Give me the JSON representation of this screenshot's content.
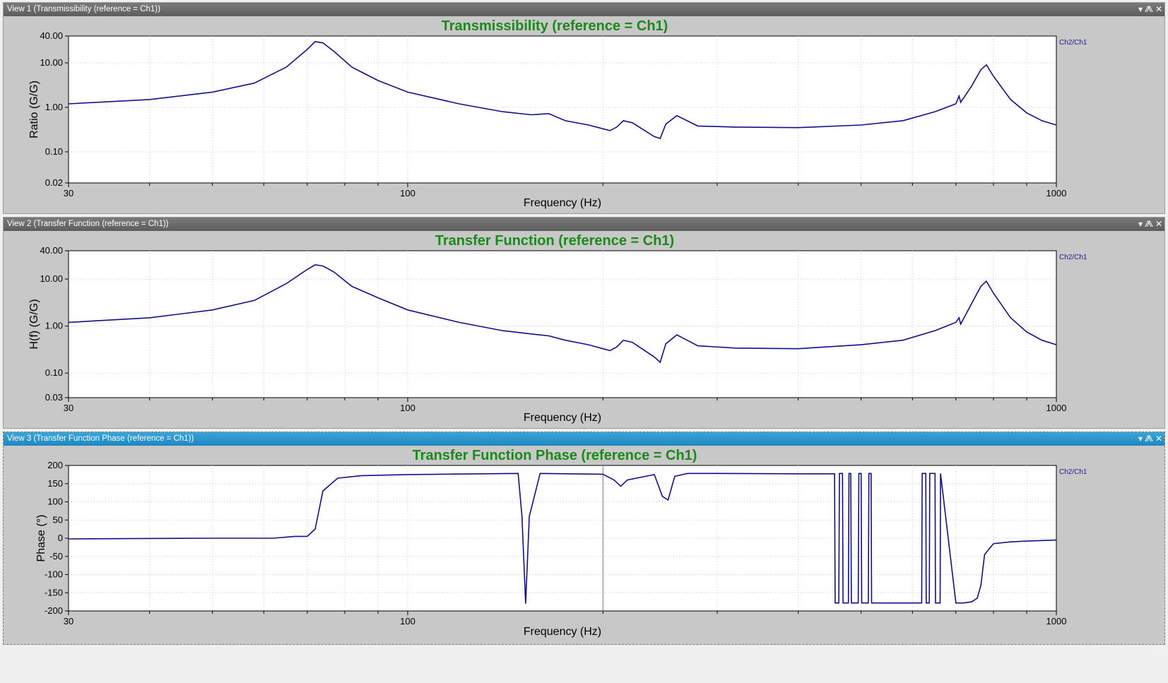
{
  "window_controls": {
    "dropdown": "▾",
    "pin": "⨇",
    "close": "✕"
  },
  "views": [
    {
      "header": "View 1 (Transmissibility (reference = Ch1))",
      "active": false
    },
    {
      "header": "View 2 (Transfer Function (reference = Ch1))",
      "active": false
    },
    {
      "header": "View 3 (Transfer Function Phase (reference = Ch1))",
      "active": true
    }
  ],
  "chart_data": [
    {
      "type": "line",
      "title": "Transmissibility (reference = Ch1)",
      "xlabel": "Frequency (Hz)",
      "ylabel": "Ratio (G/G)",
      "xscale": "log",
      "yscale": "log",
      "xlim": [
        30,
        1000
      ],
      "ylim": [
        0.02,
        40
      ],
      "xticks": [
        30,
        100,
        1000
      ],
      "xtick_labels": [
        "30",
        "100",
        "1000"
      ],
      "yticks": [
        0.02,
        0.1,
        1,
        10,
        40
      ],
      "ytick_labels": [
        "0.02",
        "0.10",
        "1.00",
        "10.00",
        "40.00"
      ],
      "grid": true,
      "legend_position": "top-right",
      "series": [
        {
          "name": "Ch2/Ch1",
          "color": "#10108c",
          "x": [
            30,
            40,
            50,
            58,
            65,
            70,
            72,
            74,
            77,
            82,
            90,
            100,
            120,
            140,
            155,
            165,
            175,
            190,
            200,
            205,
            210,
            215,
            222,
            232,
            240,
            245,
            250,
            260,
            280,
            320,
            400,
            500,
            580,
            650,
            700,
            708,
            712,
            740,
            765,
            780,
            800,
            850,
            900,
            950,
            1000
          ],
          "y": [
            1.2,
            1.5,
            2.2,
            3.5,
            8,
            20,
            30,
            28,
            18,
            8,
            4,
            2.2,
            1.2,
            0.8,
            0.68,
            0.72,
            0.5,
            0.4,
            0.33,
            0.3,
            0.36,
            0.5,
            0.45,
            0.3,
            0.22,
            0.2,
            0.42,
            0.65,
            0.38,
            0.36,
            0.35,
            0.4,
            0.5,
            0.8,
            1.2,
            1.8,
            1.3,
            3,
            7,
            9,
            5,
            1.5,
            0.75,
            0.5,
            0.4
          ]
        }
      ]
    },
    {
      "type": "line",
      "title": "Transfer Function (reference = Ch1)",
      "xlabel": "Frequency (Hz)",
      "ylabel": "H(f) (G/G)",
      "xscale": "log",
      "yscale": "log",
      "xlim": [
        30,
        1000
      ],
      "ylim": [
        0.03,
        40
      ],
      "xticks": [
        30,
        100,
        1000
      ],
      "xtick_labels": [
        "30",
        "100",
        "1000"
      ],
      "yticks": [
        0.03,
        0.1,
        1,
        10,
        40
      ],
      "ytick_labels": [
        "0.03",
        "0.10",
        "1.00",
        "10.00",
        "40.00"
      ],
      "grid": true,
      "legend_position": "top-right",
      "series": [
        {
          "name": "Ch2/Ch1",
          "color": "#10108c",
          "x": [
            30,
            40,
            50,
            58,
            65,
            70,
            72,
            74,
            77,
            82,
            90,
            100,
            120,
            140,
            155,
            165,
            175,
            190,
            200,
            205,
            210,
            215,
            222,
            232,
            240,
            245,
            250,
            260,
            280,
            320,
            400,
            500,
            580,
            650,
            700,
            708,
            712,
            740,
            765,
            780,
            800,
            850,
            900,
            950,
            1000
          ],
          "y": [
            1.2,
            1.5,
            2.2,
            3.5,
            8,
            16,
            20,
            19,
            14,
            7,
            4,
            2.2,
            1.2,
            0.8,
            0.68,
            0.62,
            0.5,
            0.4,
            0.33,
            0.3,
            0.36,
            0.5,
            0.45,
            0.3,
            0.22,
            0.17,
            0.42,
            0.65,
            0.38,
            0.34,
            0.33,
            0.4,
            0.5,
            0.8,
            1.2,
            1.5,
            1.1,
            3,
            7,
            9,
            5,
            1.5,
            0.75,
            0.5,
            0.4
          ]
        }
      ]
    },
    {
      "type": "line",
      "title": "Transfer Function Phase (reference = Ch1)",
      "xlabel": "Frequency (Hz)",
      "ylabel": "Phase (°)",
      "xscale": "log",
      "yscale": "linear",
      "xlim": [
        30,
        1000
      ],
      "ylim": [
        -200,
        200
      ],
      "xticks": [
        30,
        100,
        1000
      ],
      "xtick_labels": [
        "30",
        "100",
        "1000"
      ],
      "yticks": [
        -200,
        -150,
        -100,
        -50,
        0,
        50,
        100,
        150,
        200
      ],
      "ytick_labels": [
        "-200",
        "-150",
        "-100",
        "-50",
        "0",
        "50",
        "100",
        "150",
        "200"
      ],
      "grid": true,
      "cursor_x": 200,
      "legend_position": "top-right",
      "series": [
        {
          "name": "Ch2/Ch1",
          "color": "#10108c",
          "x": [
            30,
            50,
            62,
            67,
            70,
            72,
            74,
            78,
            85,
            100,
            130,
            148,
            150,
            152,
            154,
            160,
            200,
            208,
            213,
            218,
            240,
            247,
            252,
            258,
            270,
            300,
            400,
            455,
            456,
            462,
            463,
            468,
            469,
            478,
            479,
            482,
            483,
            495,
            496,
            500,
            501,
            513,
            514,
            518,
            519,
            535,
            536,
            620,
            621,
            629,
            630,
            637,
            638,
            650,
            651,
            662,
            663,
            700,
            720,
            740,
            755,
            765,
            775,
            800,
            850,
            900,
            1000
          ],
          "y": [
            -2,
            0,
            0,
            5,
            5,
            25,
            130,
            165,
            172,
            175,
            177,
            178,
            60,
            -180,
            60,
            178,
            176,
            160,
            143,
            160,
            175,
            115,
            105,
            170,
            178,
            178,
            177,
            177,
            -178,
            -178,
            178,
            178,
            -178,
            -178,
            178,
            178,
            -178,
            -178,
            178,
            178,
            -178,
            -178,
            178,
            178,
            -178,
            -178,
            -178,
            -178,
            178,
            178,
            -178,
            -178,
            178,
            178,
            -178,
            -178,
            178,
            -178,
            -178,
            -175,
            -165,
            -130,
            -45,
            -15,
            -10,
            -8,
            -5
          ]
        }
      ]
    }
  ]
}
